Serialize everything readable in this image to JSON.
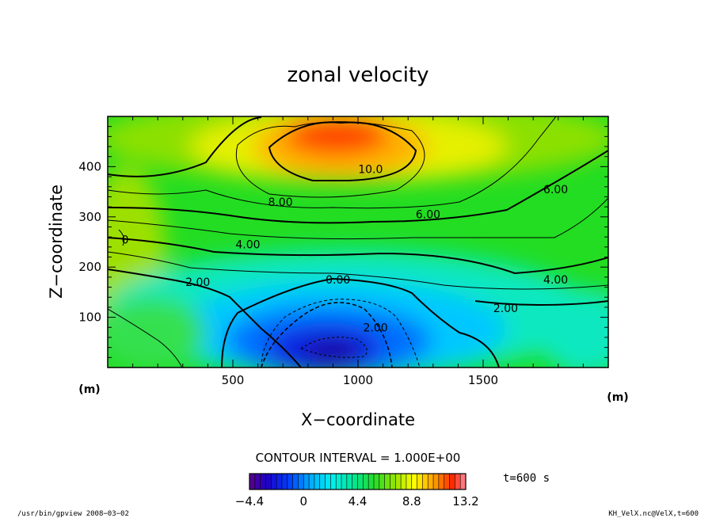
{
  "chart_data": {
    "type": "contour",
    "title": "zonal velocity",
    "xlabel": "X−coordinate",
    "ylabel": "Z−coordinate",
    "x_unit": "(m)",
    "y_unit": "(m)",
    "xlim": [
      0,
      2000
    ],
    "ylim": [
      0,
      500
    ],
    "x_ticks": [
      500,
      1000,
      1500
    ],
    "y_ticks": [
      100,
      200,
      300,
      400
    ],
    "contour_interval_text": "CONTOUR INTERVAL = 1.000E+00",
    "time_text": "t=600 s",
    "contour_labels": [
      {
        "text": "10.0",
        "x": 1050,
        "z": 395
      },
      {
        "text": "8.00",
        "x": 690,
        "z": 330
      },
      {
        "text": "6.00",
        "x": 1280,
        "z": 305
      },
      {
        "text": "6.00",
        "x": 1790,
        "z": 355
      },
      {
        "text": "4.00",
        "x": 560,
        "z": 245
      },
      {
        "text": "4.00",
        "x": 1790,
        "z": 175
      },
      {
        "text": "2.00",
        "x": 360,
        "z": 170
      },
      {
        "text": "2.00",
        "x": 1590,
        "z": 118
      },
      {
        "text": "0.00",
        "x": 920,
        "z": 175
      },
      {
        "text": "2.00",
        "x": 1070,
        "z": 80
      },
      {
        "text": "0",
        "x": 70,
        "z": 255
      }
    ],
    "colorbar": {
      "min": -4.4,
      "max": 13.2,
      "tick_labels": [
        "−4.4",
        "0",
        "4.4",
        "8.8",
        "13.2"
      ],
      "tick_values": [
        -4.4,
        0,
        4.4,
        8.8,
        13.2
      ]
    }
  },
  "footer": {
    "left": "/usr/bin/gpview   2008−03−02",
    "right": "KH_VelX.nc@VelX,t=600"
  },
  "colors": {
    "field_min": "#1a0099",
    "field_low": "#00c8ff",
    "field_mid": "#22dd22",
    "field_high": "#ffff00",
    "field_max": "#ff2200"
  }
}
